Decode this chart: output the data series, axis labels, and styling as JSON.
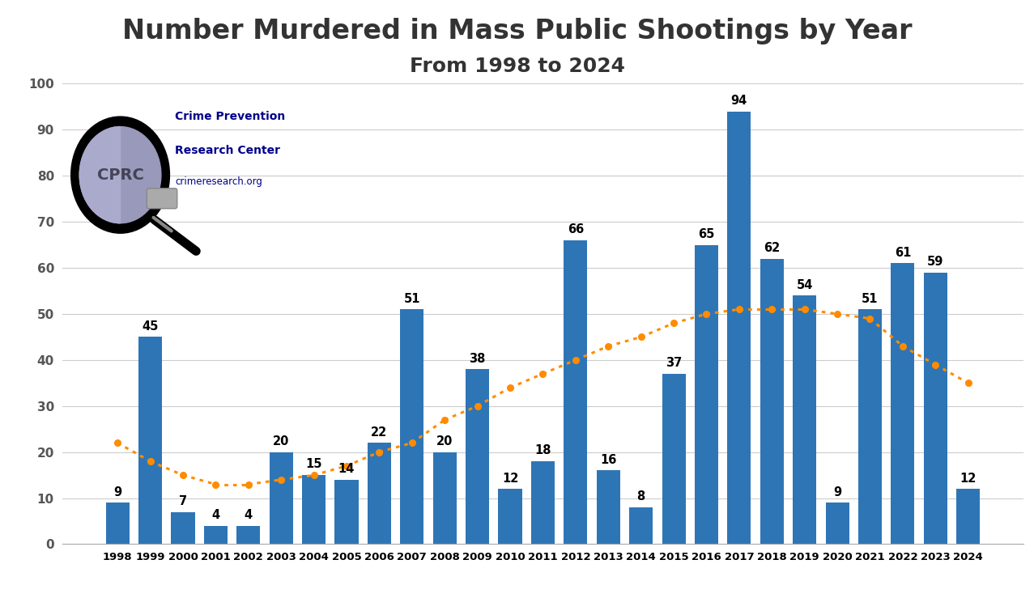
{
  "years": [
    1998,
    1999,
    2000,
    2001,
    2002,
    2003,
    2004,
    2005,
    2006,
    2007,
    2008,
    2009,
    2010,
    2011,
    2012,
    2013,
    2014,
    2015,
    2016,
    2017,
    2018,
    2019,
    2020,
    2021,
    2022,
    2023,
    2024
  ],
  "values": [
    9,
    45,
    7,
    4,
    4,
    20,
    15,
    14,
    22,
    51,
    20,
    38,
    12,
    18,
    66,
    16,
    8,
    37,
    65,
    94,
    62,
    54,
    9,
    51,
    61,
    59,
    12
  ],
  "trend": [
    22,
    18,
    15,
    13,
    13,
    14,
    15,
    17,
    20,
    22,
    27,
    30,
    34,
    37,
    40,
    43,
    45,
    48,
    50,
    51,
    51,
    51,
    50,
    49,
    43,
    39,
    35
  ],
  "bar_color": "#2E75B6",
  "trend_color": "#FF8C00",
  "title": "Number Murdered in Mass Public Shootings by Year",
  "subtitle": "From 1998 to 2024",
  "title_fontsize": 24,
  "subtitle_fontsize": 18,
  "label_fontsize": 10.5,
  "background_color": "#FFFFFF",
  "ylim": [
    0,
    100
  ],
  "yticks": [
    0,
    10,
    20,
    30,
    40,
    50,
    60,
    70,
    80,
    90,
    100
  ],
  "logo_text1": "Crime Prevention",
  "logo_text2": "Research Center",
  "logo_text3": "crimeresearch.org",
  "logo_color": "#00008B"
}
